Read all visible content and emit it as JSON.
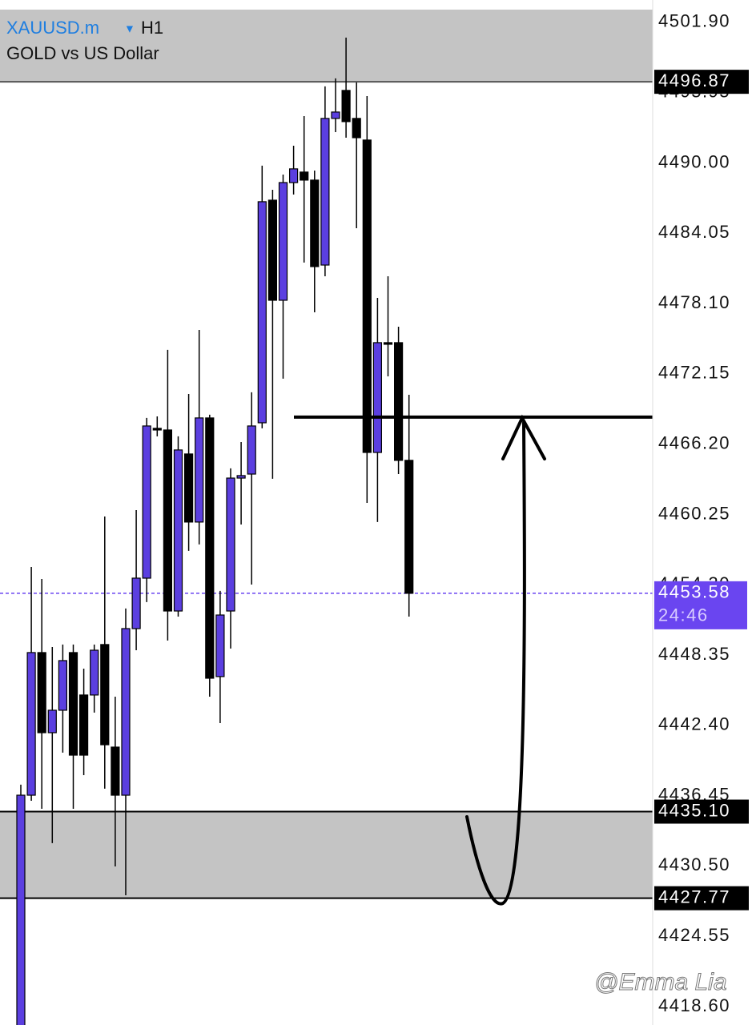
{
  "header": {
    "symbol": "XAUUSD.m",
    "timeframe": "H1",
    "description": "GOLD vs US Dollar"
  },
  "chart_data": {
    "type": "candlestick",
    "ylim": [
      4417.04,
      4502.98
    ],
    "yticks": [
      {
        "value": 4501.9,
        "label": "4501.90"
      },
      {
        "value": 4495.95,
        "label": "4495.95"
      },
      {
        "value": 4490.0,
        "label": "4490.00"
      },
      {
        "value": 4484.05,
        "label": "4484.05"
      },
      {
        "value": 4478.1,
        "label": "4478.10"
      },
      {
        "value": 4472.15,
        "label": "4472.15"
      },
      {
        "value": 4466.2,
        "label": "4466.20"
      },
      {
        "value": 4460.25,
        "label": "4460.25"
      },
      {
        "value": 4454.3,
        "label": "4454.30"
      },
      {
        "value": 4448.35,
        "label": "4448.35"
      },
      {
        "value": 4442.4,
        "label": "4442.40"
      },
      {
        "value": 4436.45,
        "label": "4436.45"
      },
      {
        "value": 4430.5,
        "label": "4430.50"
      },
      {
        "value": 4424.55,
        "label": "4424.55"
      },
      {
        "value": 4418.6,
        "label": "4418.60"
      }
    ],
    "up_color": "#5b3fe0",
    "down_color": "#000000",
    "open": [
      4415.69,
      4436.49,
      4448.56,
      4441.78,
      4443.68,
      4448.56,
      4444.97,
      4444.97,
      4449.24,
      4440.56,
      4436.49,
      4450.59,
      4454.86,
      4467.54,
      4467.4,
      4452.08,
      4465.37,
      4459.61,
      4468.42,
      4446.53,
      4452.08,
      4463.33,
      4463.67,
      4468.01,
      4486.85,
      4478.38,
      4488.34,
      4489.23,
      4488.55,
      4481.36,
      4493.77,
      4496.14,
      4493.77,
      4491.94,
      4465.5,
      4474.79,
      4474.79,
      4464.83
    ],
    "high": [
      4437.38,
      4455.81,
      4454.79,
      4449.03,
      4449.24,
      4449.24,
      4447.2,
      4449.24,
      4460.08,
      4444.83,
      4452.29,
      4460.62,
      4468.42,
      4468.55,
      4474.18,
      4466.86,
      4470.45,
      4475.87,
      4468.69,
      4453.78,
      4464.15,
      4466.38,
      4470.59,
      4489.77,
      4487.73,
      4489.02,
      4491.46,
      4493.97,
      4489.36,
      4496.48,
      4497.16,
      4500.61,
      4496.82,
      4495.66,
      4478.58,
      4480.41,
      4476.14,
      4470.38
    ],
    "low": [
      4415.69,
      4436.02,
      4435.34,
      4432.43,
      4440.09,
      4435.34,
      4438.19,
      4443.48,
      4437.04,
      4430.46,
      4428.02,
      4448.76,
      4452.83,
      4466.86,
      4449.58,
      4451.61,
      4457.17,
      4457.71,
      4444.83,
      4442.59,
      4448.9,
      4459.4,
      4454.32,
      4467.54,
      4463.27,
      4471.74,
      4487.33,
      4481.57,
      4477.36,
      4480.41,
      4492.61,
      4492.14,
      4484.48,
      4461.23,
      4459.61,
      4471.94,
      4463.67,
      4451.61
    ],
    "close": [
      4436.49,
      4448.56,
      4441.78,
      4443.68,
      4447.88,
      4439.88,
      4439.88,
      4448.76,
      4440.76,
      4436.49,
      4450.59,
      4454.86,
      4467.74,
      4467.4,
      4452.08,
      4465.71,
      4459.61,
      4468.42,
      4446.39,
      4451.74,
      4463.33,
      4463.54,
      4467.74,
      4486.72,
      4478.38,
      4488.34,
      4489.5,
      4488.55,
      4481.23,
      4493.77,
      4494.31,
      4493.5,
      4492.14,
      4465.5,
      4474.79,
      4474.72,
      4464.83,
      4453.58
    ],
    "levels": [
      {
        "value": 4496.87,
        "label": "4496.87"
      },
      {
        "value": 4435.1,
        "label": "4435.10"
      },
      {
        "value": 4427.77,
        "label": "4427.77"
      }
    ],
    "zone_color": "#c4c4c4",
    "current_price": 4453.58,
    "current_color": "#6a45f0",
    "countdown": "24:46",
    "hline": 4468.49
  },
  "watermark": "@Emma Lia"
}
